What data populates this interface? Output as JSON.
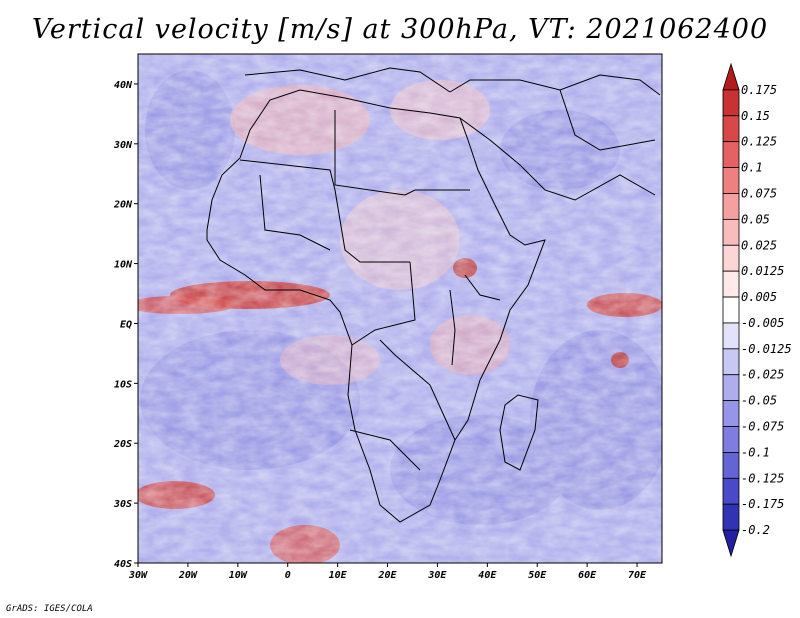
{
  "title": "Vertical velocity [m/s] at 300hPa, VT: 2021062400",
  "credit": "GrADS: IGES/COLA",
  "map": {
    "lon_range": [
      -30,
      75
    ],
    "lat_range": [
      -40,
      45
    ],
    "lon_ticks": [
      "30W",
      "20W",
      "10W",
      "0",
      "10E",
      "20E",
      "30E",
      "40E",
      "50E",
      "60E",
      "70E"
    ],
    "lat_ticks": [
      "40S",
      "30S",
      "20S",
      "10S",
      "EQ",
      "10N",
      "20N",
      "30N",
      "40N"
    ]
  },
  "colorbar": {
    "levels": [
      "0.175",
      "0.15",
      "0.125",
      "0.1",
      "0.075",
      "0.05",
      "0.025",
      "0.0125",
      "0.005",
      "-0.005",
      "-0.0125",
      "-0.025",
      "-0.05",
      "-0.075",
      "-0.1",
      "-0.125",
      "-0.175",
      "-0.2"
    ],
    "colors": [
      "#b41c1c",
      "#c83232",
      "#d84848",
      "#e66262",
      "#ee8080",
      "#f4a0a0",
      "#f8bcbc",
      "#fcd6d6",
      "#ffeaea",
      "#ffffff",
      "#e2e2fa",
      "#c8c8f4",
      "#aeaeee",
      "#9696e8",
      "#7e7ee0",
      "#6464d4",
      "#4a4ac8",
      "#3232b4",
      "#2020a0"
    ]
  }
}
